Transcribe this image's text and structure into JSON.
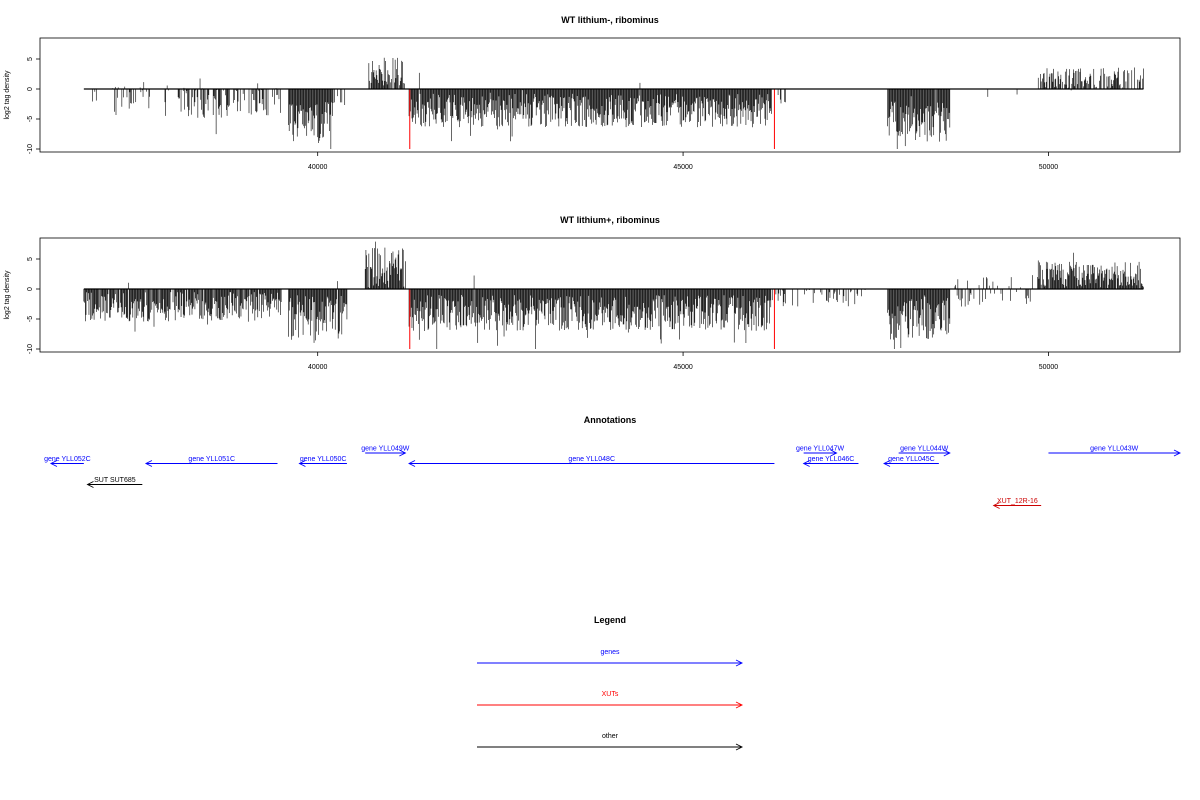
{
  "chart_data": [
    {
      "type": "bar",
      "title": "WT lithium-, ribominus",
      "ylabel": "log2 tag density",
      "xlabel": "",
      "xlim": [
        36200,
        51800
      ],
      "ylim": [
        -10.5,
        8.5
      ],
      "x_ticks": [
        40000,
        45000,
        50000
      ],
      "y_ticks": [
        -10,
        -5,
        0,
        5
      ],
      "x_tick_labels": [
        "40000",
        "45000",
        "50000"
      ],
      "y_tick_labels": [
        "-10",
        "-5",
        "0",
        "5"
      ],
      "baseline_range": [
        36800,
        51300
      ],
      "colors": {
        "bars": "#000000",
        "highlight": "#ff0000"
      },
      "segments": [
        {
          "start": 36800,
          "end": 37200,
          "mean": -1.8,
          "amp": 2.0,
          "density": 0.08
        },
        {
          "start": 37200,
          "end": 38200,
          "mean": -2.0,
          "amp": 2.5,
          "density": 0.35
        },
        {
          "start": 38200,
          "end": 39500,
          "mean": -2.3,
          "amp": 2.5,
          "density": 0.55
        },
        {
          "start": 39600,
          "end": 40200,
          "mean": -5.5,
          "amp": 3.5,
          "density": 1.0
        },
        {
          "start": 40200,
          "end": 40400,
          "mean": -2.0,
          "amp": 2.0,
          "density": 0.3
        },
        {
          "start": 40700,
          "end": 41200,
          "mean": 2.8,
          "amp": 2.5,
          "density": 0.85
        },
        {
          "start": 41250,
          "end": 46200,
          "mean": -3.6,
          "amp": 2.8,
          "density": 1.0
        },
        {
          "start": 46200,
          "end": 46400,
          "mean": -1.5,
          "amp": 1.5,
          "density": 0.4
        },
        {
          "start": 47800,
          "end": 48650,
          "mean": -5.5,
          "amp": 3.5,
          "density": 1.0
        },
        {
          "start": 49000,
          "end": 49700,
          "mean": -1.0,
          "amp": 1.0,
          "density": 0.05
        },
        {
          "start": 49850,
          "end": 51300,
          "mean": 1.8,
          "amp": 1.8,
          "density": 0.7
        }
      ],
      "highlights": [
        {
          "x": 41260,
          "y": -10
        },
        {
          "x": 46250,
          "y": -10
        }
      ]
    },
    {
      "type": "bar",
      "title": "WT lithium+, ribominus",
      "ylabel": "log2 tag density",
      "xlabel": "",
      "xlim": [
        36200,
        51800
      ],
      "ylim": [
        -10.5,
        8.5
      ],
      "x_ticks": [
        40000,
        45000,
        50000
      ],
      "y_ticks": [
        -10,
        -5,
        0,
        5
      ],
      "x_tick_labels": [
        "40000",
        "45000",
        "50000"
      ],
      "y_tick_labels": [
        "-10",
        "-5",
        "0",
        "5"
      ],
      "baseline_range": [
        36800,
        51300
      ],
      "colors": {
        "bars": "#000000",
        "highlight": "#ff0000"
      },
      "segments": [
        {
          "start": 36800,
          "end": 39500,
          "mean": -3.0,
          "amp": 2.5,
          "density": 0.95
        },
        {
          "start": 39600,
          "end": 40400,
          "mean": -5.0,
          "amp": 4.0,
          "density": 1.0
        },
        {
          "start": 40650,
          "end": 41200,
          "mean": 3.5,
          "amp": 3.5,
          "density": 1.0
        },
        {
          "start": 41250,
          "end": 46200,
          "mean": -4.0,
          "amp": 3.0,
          "density": 1.0
        },
        {
          "start": 46200,
          "end": 47500,
          "mean": -1.5,
          "amp": 1.5,
          "density": 0.25
        },
        {
          "start": 47800,
          "end": 48650,
          "mean": -5.0,
          "amp": 3.5,
          "density": 1.0
        },
        {
          "start": 48700,
          "end": 49800,
          "mean": -0.5,
          "amp": 2.5,
          "density": 0.35
        },
        {
          "start": 49850,
          "end": 51300,
          "mean": 2.3,
          "amp": 2.3,
          "density": 1.0
        }
      ],
      "highlights": [
        {
          "x": 41260,
          "y": -10
        },
        {
          "x": 46250,
          "y": -10
        }
      ]
    }
  ],
  "annotations": {
    "title": "Annotations",
    "xlim": [
      36200,
      51800
    ],
    "items": [
      {
        "label": "gene YLL052C",
        "start": 36350,
        "end": 36800,
        "dir": "left",
        "color": "#0000ff",
        "row": 1
      },
      {
        "label": "gene YLL051C",
        "start": 37650,
        "end": 39450,
        "dir": "left",
        "color": "#0000ff",
        "row": 1
      },
      {
        "label": "gene YLL050C",
        "start": 39750,
        "end": 40400,
        "dir": "left",
        "color": "#0000ff",
        "row": 1
      },
      {
        "label": "gene YLL049W",
        "start": 40650,
        "end": 41200,
        "dir": "right",
        "color": "#0000ff",
        "row": 0
      },
      {
        "label": "gene YLL048C",
        "start": 41250,
        "end": 46250,
        "dir": "left",
        "color": "#0000ff",
        "row": 1
      },
      {
        "label": "gene YLL047W",
        "start": 46650,
        "end": 47100,
        "dir": "right",
        "color": "#0000ff",
        "row": 0
      },
      {
        "label": "gene YLL046C",
        "start": 46650,
        "end": 47400,
        "dir": "left",
        "color": "#0000ff",
        "row": 1
      },
      {
        "label": "gene YLL045C",
        "start": 47750,
        "end": 48500,
        "dir": "left",
        "color": "#0000ff",
        "row": 1
      },
      {
        "label": "gene YLL044W",
        "start": 47950,
        "end": 48650,
        "dir": "right",
        "color": "#0000ff",
        "row": 0
      },
      {
        "label": "gene YLL043W",
        "start": 50000,
        "end": 51800,
        "dir": "right",
        "color": "#0000ff",
        "row": 0
      },
      {
        "label": "SUT SUT685",
        "start": 36850,
        "end": 37600,
        "dir": "left",
        "color": "#000000",
        "row": 3
      },
      {
        "label": "XUT_12R-16",
        "start": 49250,
        "end": 49900,
        "dir": "left",
        "color": "#cc0000",
        "row": 5
      }
    ]
  },
  "legend": {
    "title": "Legend",
    "entries": [
      {
        "label": "genes",
        "color": "#0000ff"
      },
      {
        "label": "XUTs",
        "color": "#ff0000"
      },
      {
        "label": "other",
        "color": "#000000"
      }
    ]
  }
}
